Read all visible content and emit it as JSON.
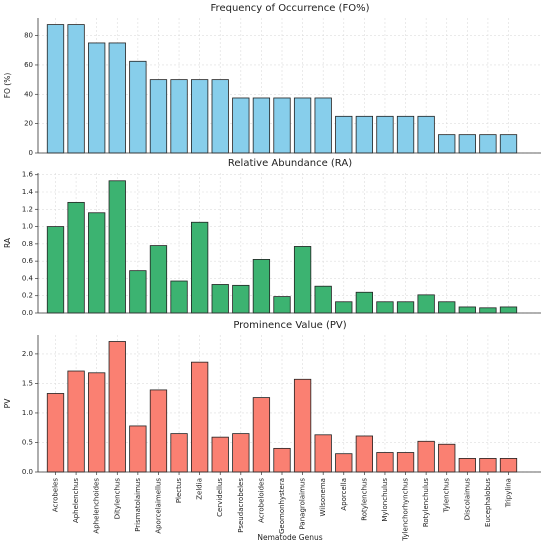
{
  "chart_data": [
    {
      "type": "bar",
      "title": "Frequency of Occurrence (FO%)",
      "y_label": "FO (%)",
      "color": "#87ceeb",
      "values": [
        87.5,
        87.5,
        75,
        75,
        62.5,
        50,
        50,
        50,
        50,
        37.5,
        37.5,
        37.5,
        37.5,
        37.5,
        25,
        25,
        25,
        25,
        25,
        12.5,
        12.5,
        12.5,
        12.5
      ],
      "ylim": [
        0,
        92
      ],
      "yticks": [
        0,
        20,
        40,
        60,
        80
      ],
      "grid": true
    },
    {
      "type": "bar",
      "title": "Relative Abundance (RA)",
      "y_label": "RA",
      "color": "#3cb371",
      "values": [
        1.0,
        1.28,
        1.16,
        1.53,
        0.49,
        0.78,
        0.37,
        1.05,
        0.33,
        0.32,
        0.62,
        0.19,
        0.77,
        0.31,
        0.13,
        0.24,
        0.13,
        0.13,
        0.21,
        0.13,
        0.07,
        0.06,
        0.07
      ],
      "ylim": [
        0,
        1.62
      ],
      "yticks": [
        {
          "value": 0,
          "label": "0.0"
        },
        0.2,
        0.4,
        0.6,
        0.8,
        {
          "value": 1,
          "label": "1.0"
        },
        1.2,
        1.4,
        1.6
      ],
      "grid": true
    },
    {
      "type": "bar",
      "title": "Prominence Value (PV)",
      "y_label": "PV",
      "x_label": "Nematode Genus",
      "color": "#fa8072",
      "categories": [
        "Acrobeles",
        "Aphelenchus",
        "Aphelenchoides",
        "Ditylenchus",
        "Prismatolaimus",
        "Aporcelaimellus",
        "Plectus",
        "Zeldia",
        "Cervidellus",
        "Pseudacrobeles",
        "Acrobeloides",
        "Geomonhystera",
        "Panagrolaimus",
        "Wilsonema",
        "Aporcella",
        "Rotylenchus",
        "Mylonchulus",
        "Tylenchorhynchus",
        "Rotylenchulus",
        "Tylenchus",
        "Discolaimus",
        "Eucephalobus",
        "Tripylina"
      ],
      "values": [
        1.33,
        1.71,
        1.68,
        2.21,
        0.78,
        1.39,
        0.65,
        1.86,
        0.59,
        0.65,
        1.26,
        0.4,
        1.57,
        0.63,
        0.31,
        0.61,
        0.33,
        0.33,
        0.52,
        0.47,
        0.23,
        0.23,
        0.23
      ],
      "ylim": [
        0,
        2.32
      ],
      "yticks": [
        {
          "value": 0,
          "label": "0.0"
        },
        0.5,
        {
          "value": 1,
          "label": "1.0"
        },
        1.5,
        {
          "value": 2,
          "label": "2.0"
        }
      ],
      "grid": true
    }
  ]
}
